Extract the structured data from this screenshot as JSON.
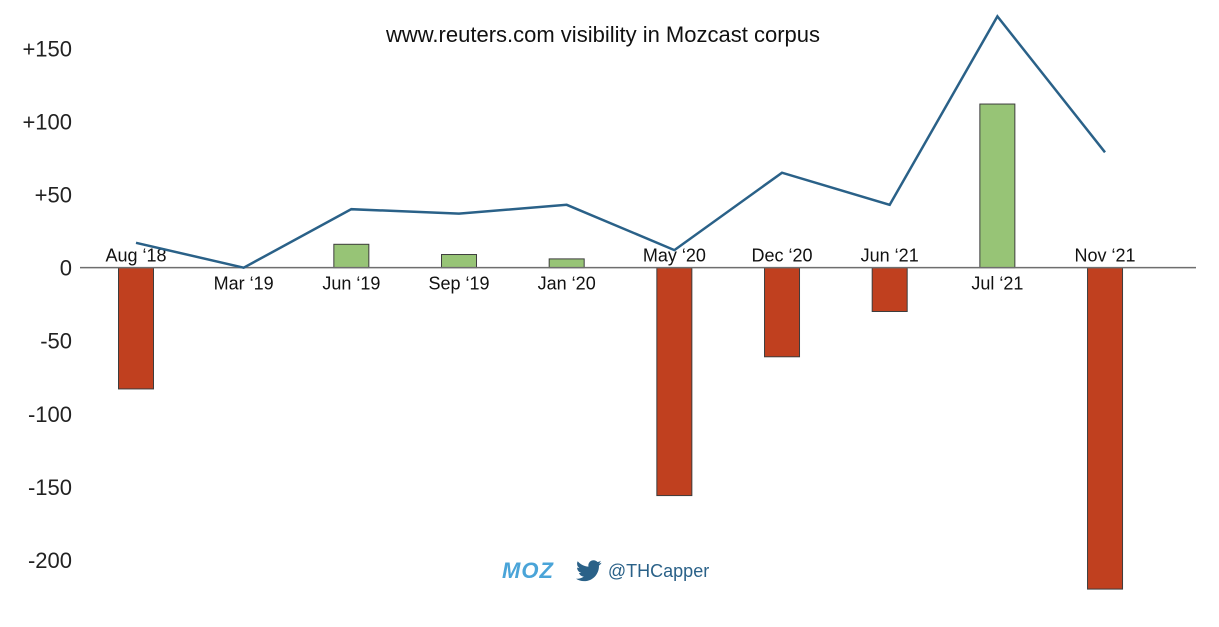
{
  "colors": {
    "positive_bar": "#97c476",
    "negative_bar": "#c0401f",
    "line": "#2a6188",
    "brand": "#4aa4d8",
    "axis": "#6e6e6e"
  },
  "chart_data": {
    "type": "bar",
    "title": "www.reuters.com visibility in Mozcast corpus",
    "categories": [
      "Aug '18",
      "Mar '19",
      "Jun '19",
      "Sep '19",
      "Jan '20",
      "May '20",
      "Dec '20",
      "Jun '21",
      "Jul '21",
      "Nov '21"
    ],
    "category_labels": [
      "Aug ‘18",
      "Mar ‘19",
      "Jun ‘19",
      "Sep ‘19",
      "Jan ‘20",
      "May ‘20",
      "Dec ‘20",
      "Jun ‘21",
      "Jul ‘21",
      "Nov ‘21"
    ],
    "series": [
      {
        "kind": "bar",
        "values": [
          -83,
          0,
          16,
          9,
          6,
          -156,
          -61,
          -30,
          112,
          -220
        ]
      },
      {
        "kind": "line",
        "values": [
          17,
          0,
          40,
          37,
          43,
          12,
          65,
          43,
          172,
          79
        ]
      }
    ],
    "yticks": [
      150,
      100,
      50,
      0,
      -50,
      -100,
      -150,
      -200
    ],
    "ytick_labels": [
      "+150",
      "+100",
      "+50",
      "0",
      "-50",
      "-100",
      "-150",
      "-200"
    ],
    "ylim": [
      -222,
      175
    ],
    "grid": false,
    "legend": "none"
  },
  "footer": {
    "brand_logo": "MOZ",
    "brand_icon": "moz-logo-icon",
    "twitter_icon": "twitter-bird-icon",
    "twitter_handle": "@THCapper"
  }
}
